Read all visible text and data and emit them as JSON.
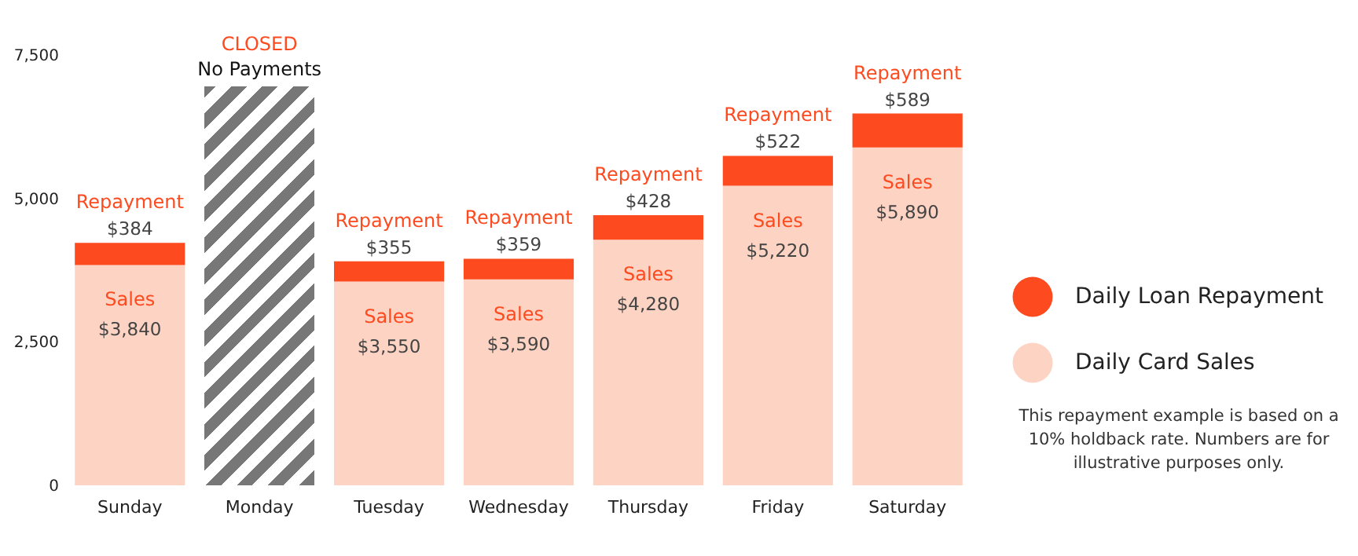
{
  "chart_data": {
    "type": "bar",
    "stacked": true,
    "categories": [
      "Sunday",
      "Monday",
      "Tuesday",
      "Wednesday",
      "Thursday",
      "Friday",
      "Saturday"
    ],
    "series": [
      {
        "name": "Daily Card Sales",
        "color": "#fdd3c3",
        "values": [
          3840,
          null,
          3550,
          3590,
          4280,
          5220,
          5890
        ],
        "value_labels": [
          "$3,840",
          null,
          "$3,550",
          "$3,590",
          "$4,280",
          "$5,220",
          "$5,890"
        ]
      },
      {
        "name": "Daily Loan Repayment",
        "color": "#fe4a1f",
        "values": [
          384,
          null,
          355,
          359,
          428,
          522,
          589
        ],
        "value_labels": [
          "$384",
          null,
          "$355",
          "$359",
          "$428",
          "$522",
          "$589"
        ]
      }
    ],
    "ylim": [
      0,
      7500
    ],
    "yticks": [
      0,
      {
        "value": 2500,
        "label": "2,500"
      },
      {
        "value": 5000,
        "label": "5,000"
      },
      {
        "value": 7500,
        "label": "7,500"
      }
    ],
    "grid": false,
    "bands": [
      {
        "axis": "x",
        "from": "Monday",
        "to": "Monday",
        "label": "CLOSED",
        "color": "#777777"
      }
    ],
    "legend": "right",
    "annotations": [
      {
        "text": "Repayment",
        "x": "Sunday",
        "y": 4224
      },
      {
        "text": "Sales",
        "x": "Sunday",
        "y": 3840
      },
      "No Payments",
      {
        "text": "Repayment",
        "x": "Tuesday",
        "y": 3905
      },
      {
        "text": "Sales",
        "x": "Tuesday",
        "y": 3550
      },
      {
        "text": "Repayment",
        "x": "Wednesday",
        "y": 3949
      },
      {
        "text": "Sales",
        "x": "Wednesday",
        "y": 3590
      },
      {
        "text": "Repayment",
        "x": "Thursday",
        "y": 4708
      },
      {
        "text": "Sales",
        "x": "Thursday",
        "y": 4280
      },
      {
        "text": "Repayment",
        "x": "Friday",
        "y": 5742
      },
      {
        "text": "Sales",
        "x": "Friday",
        "y": 5220
      },
      {
        "text": "Repayment",
        "x": "Saturday",
        "y": 6479
      },
      {
        "text": "Sales",
        "x": "Saturday",
        "y": 5890
      },
      "This repayment example is based on a 10% holdback rate. Numbers are for illustrative purposes only."
    ]
  }
}
